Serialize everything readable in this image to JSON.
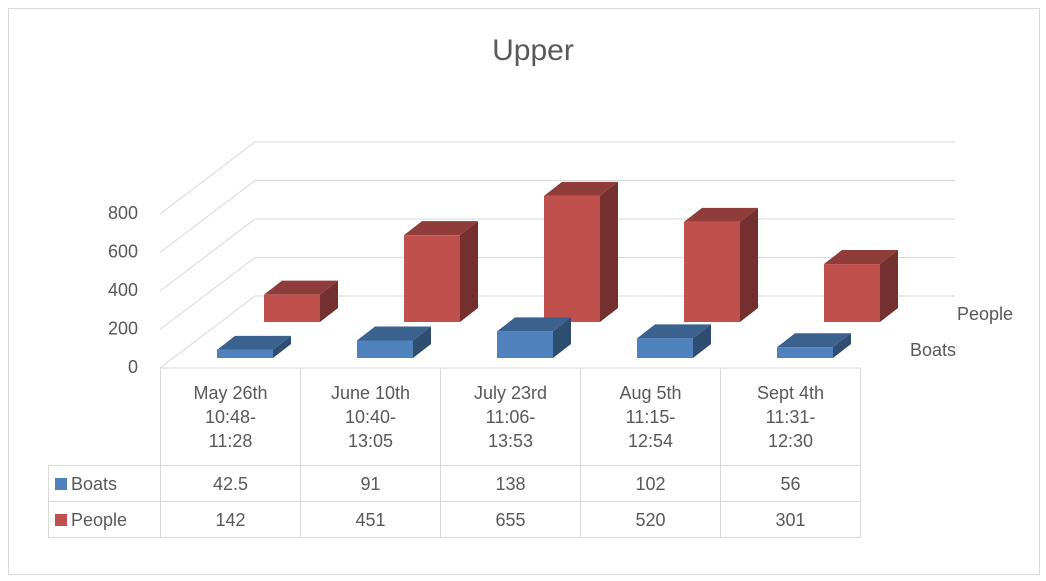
{
  "chart_data": {
    "type": "bar",
    "title": "Upper",
    "categories": [
      "May 26th 10:48-11:28",
      "June 10th 10:40-13:05",
      "July 23rd 11:06-13:53",
      "Aug 5th 11:15-12:54",
      "Sept 4th 11:31-12:30"
    ],
    "series": [
      {
        "name": "Boats",
        "color": "#4f81bd",
        "values": [
          42.5,
          91,
          138,
          102,
          56
        ]
      },
      {
        "name": "People",
        "color": "#c0504d",
        "values": [
          142,
          451,
          655,
          520,
          301
        ]
      }
    ],
    "ylim": [
      0,
      800
    ],
    "yticks": [
      0,
      200,
      400,
      600,
      800
    ],
    "grid": true,
    "data_table": true
  }
}
